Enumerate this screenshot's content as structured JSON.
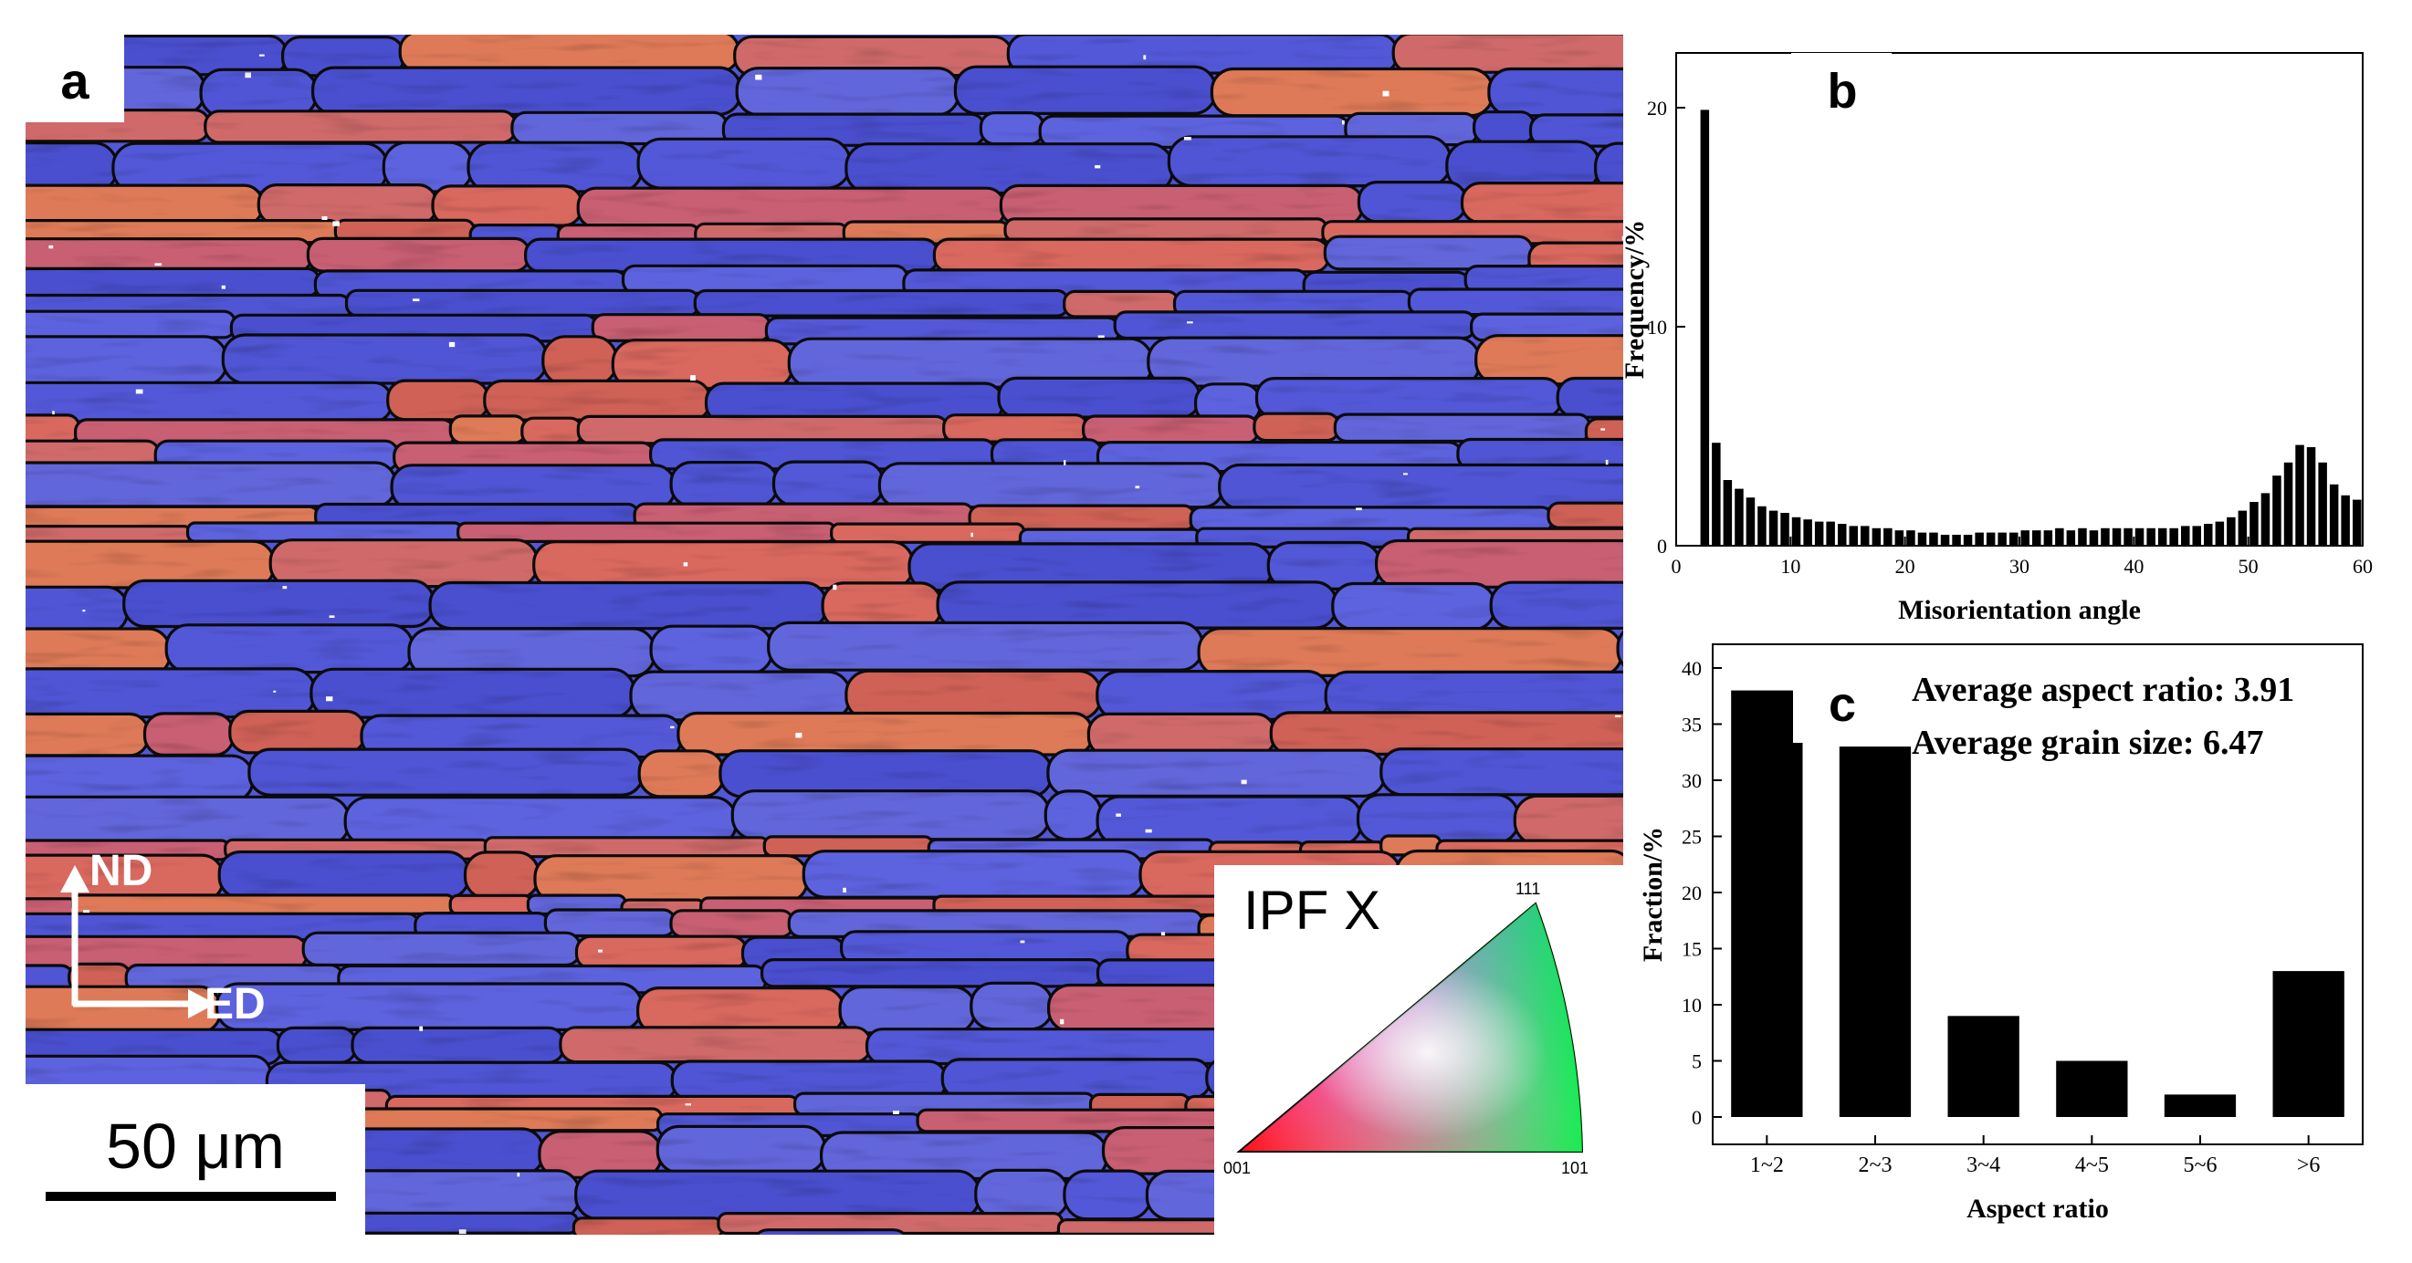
{
  "panels": {
    "a": {
      "label": "a",
      "axes": {
        "vertical": "ND",
        "horizontal": "ED"
      },
      "scale_bar": "50 μm",
      "ipf": {
        "title": "IPF X",
        "corners": {
          "top": "111",
          "left": "001",
          "right": "101"
        }
      },
      "colors": {
        "blue": "#5358d8",
        "red": "#d9685f",
        "boundary": "#0b0b0b"
      }
    },
    "b": {
      "label": "b"
    },
    "c": {
      "label": "c",
      "annotations": [
        "Average aspect ratio: 3.91",
        "Average grain size: 6.47"
      ]
    }
  },
  "chart_data": [
    {
      "panel": "b",
      "type": "bar",
      "xlabel": "Misorientation angle",
      "ylabel": "Frequency/%",
      "xlim": [
        0,
        60
      ],
      "ylim": [
        0,
        22.5
      ],
      "xticks": [
        0,
        10,
        20,
        30,
        40,
        50,
        60
      ],
      "yticks": [
        0,
        10,
        20
      ],
      "bin_width": 1,
      "x": [
        2.5,
        3.5,
        4.5,
        5.5,
        6.5,
        7.5,
        8.5,
        9.5,
        10.5,
        11.5,
        12.5,
        13.5,
        14.5,
        15.5,
        16.5,
        17.5,
        18.5,
        19.5,
        20.5,
        21.5,
        22.5,
        23.5,
        24.5,
        25.5,
        26.5,
        27.5,
        28.5,
        29.5,
        30.5,
        31.5,
        32.5,
        33.5,
        34.5,
        35.5,
        36.5,
        37.5,
        38.5,
        39.5,
        40.5,
        41.5,
        42.5,
        43.5,
        44.5,
        45.5,
        46.5,
        47.5,
        48.5,
        49.5,
        50.5,
        51.5,
        52.5,
        53.5,
        54.5,
        55.5,
        56.5,
        57.5,
        58.5,
        59.5
      ],
      "values": [
        19.9,
        4.7,
        3.0,
        2.6,
        2.2,
        1.8,
        1.6,
        1.5,
        1.3,
        1.2,
        1.1,
        1.1,
        1.0,
        0.9,
        0.9,
        0.8,
        0.8,
        0.7,
        0.7,
        0.6,
        0.6,
        0.5,
        0.5,
        0.5,
        0.6,
        0.6,
        0.6,
        0.6,
        0.7,
        0.7,
        0.7,
        0.8,
        0.7,
        0.8,
        0.7,
        0.8,
        0.8,
        0.8,
        0.8,
        0.8,
        0.8,
        0.8,
        0.9,
        0.9,
        1.0,
        1.1,
        1.3,
        1.6,
        2.0,
        2.4,
        3.2,
        3.8,
        4.6,
        4.5,
        3.8,
        2.8,
        2.3,
        2.1
      ]
    },
    {
      "panel": "c",
      "type": "bar",
      "xlabel": "Aspect ratio",
      "ylabel": "Fraction/%",
      "ylim": [
        0,
        40
      ],
      "yticks": [
        0,
        5,
        10,
        15,
        20,
        25,
        30,
        35,
        40
      ],
      "categories": [
        "1~2",
        "2~3",
        "3~4",
        "4~5",
        "5~6",
        ">6"
      ],
      "values": [
        38,
        33,
        9,
        5,
        2,
        13
      ]
    }
  ]
}
